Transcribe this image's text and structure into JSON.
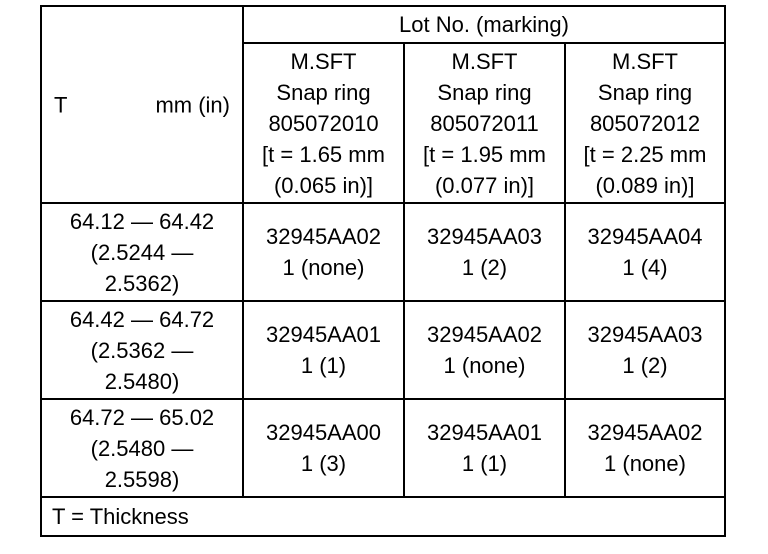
{
  "table": {
    "corner": {
      "symbol": "T",
      "unit": "mm (in)"
    },
    "group_header": "Lot No. (marking)",
    "columns": [
      [
        "M.SFT",
        "Snap ring",
        "805072010",
        "[t = 1.65 mm",
        "(0.065 in)]"
      ],
      [
        "M.SFT",
        "Snap ring",
        "805072011",
        "[t = 1.95 mm",
        "(0.077 in)]"
      ],
      [
        "M.SFT",
        "Snap ring",
        "805072012",
        "[t = 2.25 mm",
        "(0.089 in)]"
      ]
    ],
    "rows": [
      {
        "range": [
          "64.12 — 64.42",
          "(2.5244 —",
          "2.5362)"
        ],
        "cells": [
          [
            "32945AA02",
            "1 (none)"
          ],
          [
            "32945AA03",
            "1 (2)"
          ],
          [
            "32945AA04",
            "1 (4)"
          ]
        ]
      },
      {
        "range": [
          "64.42 — 64.72",
          "(2.5362 —",
          "2.5480)"
        ],
        "cells": [
          [
            "32945AA01",
            "1 (1)"
          ],
          [
            "32945AA02",
            "1 (none)"
          ],
          [
            "32945AA03",
            "1 (2)"
          ]
        ]
      },
      {
        "range": [
          "64.72 — 65.02",
          "(2.5480 —",
          "2.5598)"
        ],
        "cells": [
          [
            "32945AA00",
            "1 (3)"
          ],
          [
            "32945AA01",
            "1 (1)"
          ],
          [
            "32945AA02",
            "1 (none)"
          ]
        ]
      }
    ],
    "footnote": "T = Thickness"
  }
}
